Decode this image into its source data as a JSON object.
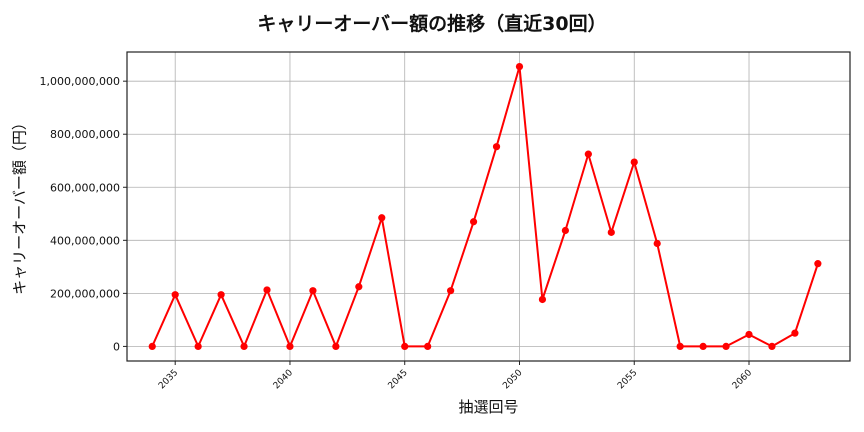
{
  "chart_data": {
    "type": "line",
    "title": "キャリーオーバー額の推移（直近30回）",
    "xlabel": "抽選回号",
    "ylabel": "キャリーオーバー額（円）",
    "x": [
      2034,
      2035,
      2036,
      2037,
      2038,
      2039,
      2040,
      2041,
      2042,
      2043,
      2044,
      2045,
      2046,
      2047,
      2048,
      2049,
      2050,
      2051,
      2052,
      2053,
      2054,
      2055,
      2056,
      2057,
      2058,
      2059,
      2060,
      2061,
      2062,
      2063
    ],
    "series": [
      {
        "name": "キャリーオーバー額",
        "color": "#ff0000",
        "marker": "circle",
        "values": [
          0,
          195000000,
          0,
          195000000,
          0,
          213000000,
          0,
          210000000,
          0,
          225000000,
          485000000,
          0,
          0,
          210000000,
          470000000,
          753000000,
          1055000000,
          177000000,
          437000000,
          725000000,
          430000000,
          695000000,
          388000000,
          0,
          0,
          0,
          45000000,
          0,
          50000000,
          312000000
        ]
      }
    ],
    "xticks": [
      2035,
      2040,
      2045,
      2050,
      2055,
      2060
    ],
    "yticks": [
      0,
      200000000,
      400000000,
      600000000,
      800000000,
      1000000000
    ],
    "ytick_labels": [
      "0",
      "200,000,000",
      "400,000,000",
      "600,000,000",
      "800,000,000",
      "1,000,000,000"
    ],
    "xlim": [
      2032.9,
      2064.4
    ],
    "ylim": [
      -55000000,
      1110000000
    ],
    "grid": true,
    "legend": null
  }
}
